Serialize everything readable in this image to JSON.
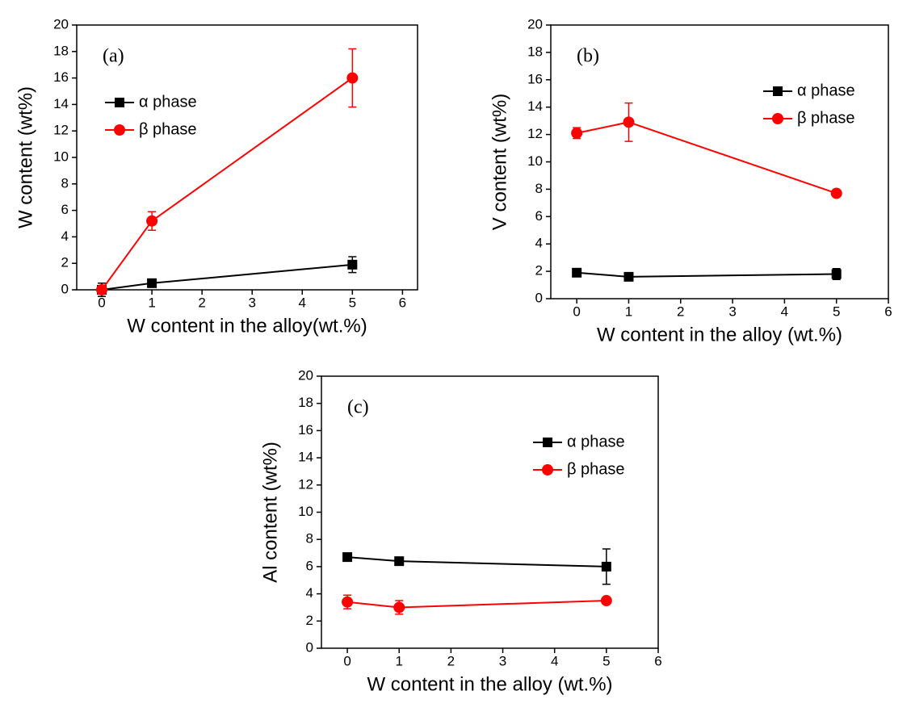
{
  "chart_data": [
    {
      "type": "line",
      "annotation": "(a)",
      "x_label": "W content in the alloy(wt.%)",
      "y_label": "W content (wt%)",
      "x": [
        0,
        1,
        5
      ],
      "xlim": [
        -0.5,
        6.3
      ],
      "ylim": [
        0,
        20
      ],
      "xticks": [
        0,
        1,
        2,
        3,
        4,
        5,
        6
      ],
      "yticks": [
        0,
        2,
        4,
        6,
        8,
        10,
        12,
        14,
        16,
        18,
        20
      ],
      "legend": "upper left",
      "series": [
        {
          "name": "α phase",
          "color": "#000000",
          "marker": "square",
          "values": [
            0,
            0.5,
            1.9
          ],
          "errors": [
            0.5,
            0.2,
            0.6
          ]
        },
        {
          "name": "β phase",
          "color": "#ff0000",
          "marker": "circle",
          "values": [
            0,
            5.2,
            16.0
          ],
          "errors": [
            0.3,
            0.7,
            2.2
          ]
        }
      ]
    },
    {
      "type": "line",
      "annotation": "(b)",
      "x_label": "W content in the alloy (wt.%)",
      "y_label": "V content (wt%)",
      "x": [
        0,
        1,
        5
      ],
      "xlim": [
        -0.5,
        6
      ],
      "ylim": [
        0,
        20
      ],
      "xticks": [
        0,
        1,
        2,
        3,
        4,
        5,
        6
      ],
      "yticks": [
        0,
        2,
        4,
        6,
        8,
        10,
        12,
        14,
        16,
        18,
        20
      ],
      "legend": "upper right",
      "series": [
        {
          "name": "α phase",
          "color": "#000000",
          "marker": "square",
          "values": [
            1.9,
            1.6,
            1.8
          ],
          "errors": [
            0.2,
            0.1,
            0.4
          ]
        },
        {
          "name": "β phase",
          "color": "#ff0000",
          "marker": "circle",
          "values": [
            12.1,
            12.9,
            7.7
          ],
          "errors": [
            0.4,
            1.4,
            0.2
          ]
        }
      ]
    },
    {
      "type": "line",
      "annotation": "(c)",
      "x_label": "W content in the alloy (wt.%)",
      "y_label": "Al content (wt%)",
      "x": [
        0,
        1,
        5
      ],
      "xlim": [
        -0.5,
        6
      ],
      "ylim": [
        0,
        20
      ],
      "xticks": [
        0,
        1,
        2,
        3,
        4,
        5,
        6
      ],
      "yticks": [
        0,
        2,
        4,
        6,
        8,
        10,
        12,
        14,
        16,
        18,
        20
      ],
      "legend": "upper right",
      "series": [
        {
          "name": "α phase",
          "color": "#000000",
          "marker": "square",
          "values": [
            6.7,
            6.4,
            6.0
          ],
          "errors": [
            0.2,
            0.2,
            1.3
          ]
        },
        {
          "name": "β phase",
          "color": "#ff0000",
          "marker": "circle",
          "values": [
            3.4,
            3.0,
            3.5
          ],
          "errors": [
            0.5,
            0.5,
            0.2
          ]
        }
      ]
    }
  ]
}
